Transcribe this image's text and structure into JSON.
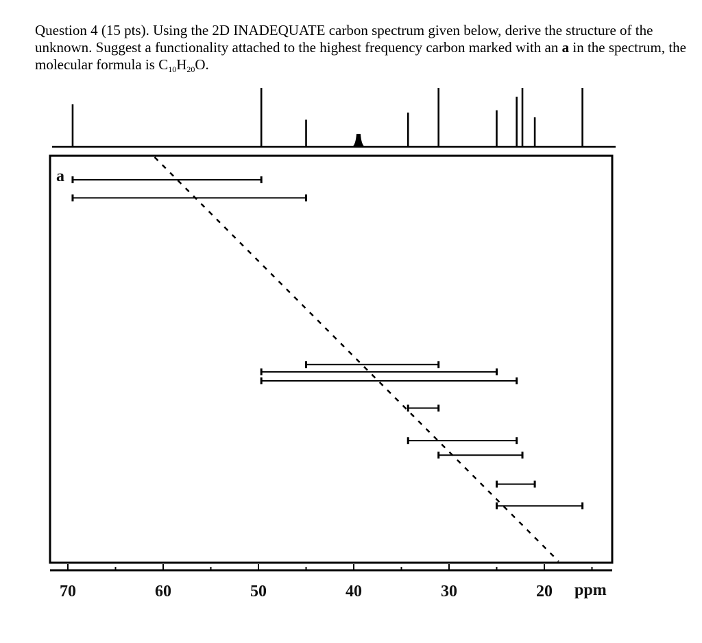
{
  "question": {
    "part1": "Question 4 (15 pts). Using the 2D INADEQUATE carbon spectrum given below, derive the structure of the unknown.  Suggest a functionality attached to the highest frequency carbon marked with an ",
    "bold_letter": "a",
    "part2": " in the spectrum, the molecular formula is C",
    "sub1": "10",
    "h": "H",
    "sub2": "20",
    "o": "O."
  },
  "chart_data": {
    "type": "scatter",
    "title": "",
    "xlabel": "ppm",
    "xlim": [
      70,
      15
    ],
    "axis_ticks": [
      "70",
      "60",
      "50",
      "40",
      "30",
      "20"
    ],
    "axis_tick_values": [
      70,
      60,
      50,
      40,
      30,
      20
    ],
    "unit": "ppm",
    "peak_label": "a",
    "peaks": [
      {
        "ppm": 69.5,
        "height": 0.72
      },
      {
        "ppm": 49.7,
        "height": 1.0
      },
      {
        "ppm": 45.0,
        "height": 0.46
      },
      {
        "ppm": 39.5,
        "height": 0.22,
        "broad": true
      },
      {
        "ppm": 34.3,
        "height": 0.58
      },
      {
        "ppm": 31.1,
        "height": 1.0
      },
      {
        "ppm": 25.0,
        "height": 0.62
      },
      {
        "ppm": 22.9,
        "height": 0.85
      },
      {
        "ppm": 22.3,
        "height": 1.0
      },
      {
        "ppm": 21.0,
        "height": 0.5
      },
      {
        "ppm": 16.0,
        "height": 1.0
      }
    ],
    "correlations": [
      {
        "from": 69.5,
        "to": 49.7,
        "row": 0.0
      },
      {
        "from": 69.5,
        "to": 45.0,
        "row": 0.05
      },
      {
        "from": 45.0,
        "to": 31.1,
        "row": 0.51
      },
      {
        "from": 49.7,
        "to": 25.0,
        "row": 0.53
      },
      {
        "from": 49.7,
        "to": 22.9,
        "row": 0.555
      },
      {
        "from": 34.3,
        "to": 31.1,
        "row": 0.63
      },
      {
        "from": 34.3,
        "to": 22.9,
        "row": 0.72
      },
      {
        "from": 31.1,
        "to": 22.3,
        "row": 0.76
      },
      {
        "from": 25.0,
        "to": 21.0,
        "row": 0.84
      },
      {
        "from": 25.0,
        "to": 16.0,
        "row": 0.9
      }
    ],
    "diagonal": {
      "ppm_start": 60.9,
      "ppm_end": 18.5
    }
  }
}
